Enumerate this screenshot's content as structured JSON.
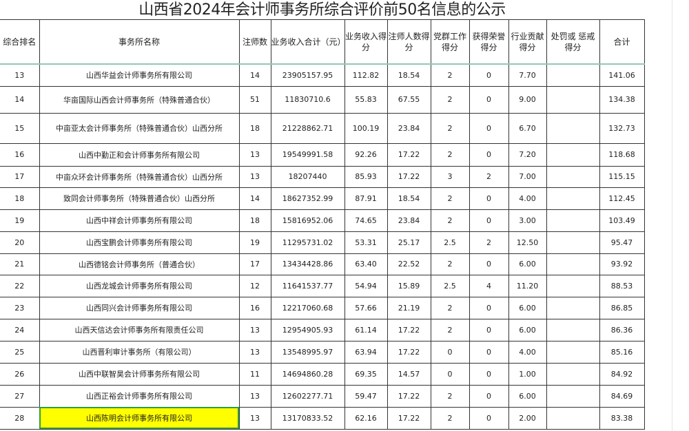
{
  "title": "山西省2024年会计师事务所综合评价前50名信息的公示",
  "headers": [
    "综合排名",
    "事务所名称",
    "注师数",
    "业务收入合计（元）",
    "业务收入得分",
    "注师人数得分",
    "党群工作得分",
    "获得荣誉得分",
    "行业贡献得分",
    "处罚或 惩戒 得分",
    "合计"
  ],
  "highlight_color": "#ffff00",
  "rows": [
    {
      "rank": "13",
      "name": "山西华益会计师事务所有限公司",
      "cpas": "14",
      "revenue": "23905157.95",
      "rev_score": "112.82",
      "cpa_score": "18.54",
      "party": "2",
      "honor": "0",
      "contrib": "7.70",
      "penalty": "",
      "total": "141.06"
    },
    {
      "rank": "14",
      "name": "华亩国际山西会计师事务所（特殊普通合伙）",
      "cpas": "51",
      "revenue": "11830710.6",
      "rev_score": "55.83",
      "cpa_score": "67.55",
      "party": "2",
      "honor": "0",
      "contrib": "9.00",
      "penalty": "",
      "total": "134.38"
    },
    {
      "rank": "15",
      "name": "中亩亚太会计师事务所（特殊普通合伙）山西分所",
      "cpas": "18",
      "revenue": "21228862.71",
      "rev_score": "100.19",
      "cpa_score": "23.84",
      "party": "2",
      "honor": "0",
      "contrib": "6.70",
      "penalty": "",
      "total": "132.73"
    },
    {
      "rank": "16",
      "name": "山西中勤正和会计师事务所有限公司",
      "cpas": "13",
      "revenue": "19549991.58",
      "rev_score": "92.26",
      "cpa_score": "17.22",
      "party": "2",
      "honor": "0",
      "contrib": "7.20",
      "penalty": "",
      "total": "118.68"
    },
    {
      "rank": "17",
      "name": "中亩众环会计师事务所（特殊普通合伙）山西分所",
      "cpas": "13",
      "revenue": "18207440",
      "rev_score": "85.93",
      "cpa_score": "17.22",
      "party": "3",
      "honor": "2",
      "contrib": "7.00",
      "penalty": "",
      "total": "115.15"
    },
    {
      "rank": "18",
      "name": "致同会计师事务所（特殊普通合伙）山西分所",
      "cpas": "14",
      "revenue": "18627352.99",
      "rev_score": "87.91",
      "cpa_score": "18.54",
      "party": "2",
      "honor": "0",
      "contrib": "4.00",
      "penalty": "",
      "total": "112.45"
    },
    {
      "rank": "19",
      "name": "山西中祥会计师事务所有限公司",
      "cpas": "18",
      "revenue": "15816952.06",
      "rev_score": "74.65",
      "cpa_score": "23.84",
      "party": "2",
      "honor": "0",
      "contrib": "3.00",
      "penalty": "",
      "total": "103.49"
    },
    {
      "rank": "20",
      "name": "山西宝鹏会计师事务所有限公司",
      "cpas": "19",
      "revenue": "11295731.02",
      "rev_score": "53.31",
      "cpa_score": "25.17",
      "party": "2.5",
      "honor": "2",
      "contrib": "12.50",
      "penalty": "",
      "total": "95.47"
    },
    {
      "rank": "21",
      "name": "山西德铭会计师事务所（普通合伙）",
      "cpas": "17",
      "revenue": "13434428.86",
      "rev_score": "63.40",
      "cpa_score": "22.52",
      "party": "2",
      "honor": "0",
      "contrib": "6.00",
      "penalty": "",
      "total": "93.92"
    },
    {
      "rank": "22",
      "name": "山西龙城会计师事务所有限公司",
      "cpas": "12",
      "revenue": "11641537.77",
      "rev_score": "54.94",
      "cpa_score": "15.89",
      "party": "2.5",
      "honor": "4",
      "contrib": "11.20",
      "penalty": "",
      "total": "88.53"
    },
    {
      "rank": "23",
      "name": "山西同兴会计师事务所有限公司",
      "cpas": "16",
      "revenue": "12217060.68",
      "rev_score": "57.66",
      "cpa_score": "21.19",
      "party": "2",
      "honor": "0",
      "contrib": "6.00",
      "penalty": "",
      "total": "86.85"
    },
    {
      "rank": "24",
      "name": "山西天信达会计师事务所有限责任公司",
      "cpas": "13",
      "revenue": "12954905.93",
      "rev_score": "61.14",
      "cpa_score": "17.22",
      "party": "2",
      "honor": "0",
      "contrib": "6.00",
      "penalty": "",
      "total": "86.36"
    },
    {
      "rank": "25",
      "name": "山西晋利审计事务所（有限公司）",
      "cpas": "13",
      "revenue": "13548995.97",
      "rev_score": "63.94",
      "cpa_score": "17.22",
      "party": "0",
      "honor": "0",
      "contrib": "4.00",
      "penalty": "",
      "total": "85.16"
    },
    {
      "rank": "26",
      "name": "山西中联智昊会计师事务所有限公司",
      "cpas": "11",
      "revenue": "14694860.28",
      "rev_score": "69.35",
      "cpa_score": "14.57",
      "party": "0",
      "honor": "0",
      "contrib": "1.00",
      "penalty": "",
      "total": "84.92"
    },
    {
      "rank": "27",
      "name": "山西正裕会计师事务所有限公司",
      "cpas": "13",
      "revenue": "12602277.71",
      "rev_score": "59.47",
      "cpa_score": "17.22",
      "party": "2",
      "honor": "0",
      "contrib": "6.00",
      "penalty": "",
      "total": "84.69"
    },
    {
      "rank": "28",
      "name": "山西陈明会计师事务所有限公司",
      "cpas": "13",
      "revenue": "13170833.52",
      "rev_score": "62.16",
      "cpa_score": "17.22",
      "party": "2",
      "honor": "0",
      "contrib": "2.00",
      "penalty": "",
      "total": "83.38",
      "highlighted": true
    }
  ]
}
